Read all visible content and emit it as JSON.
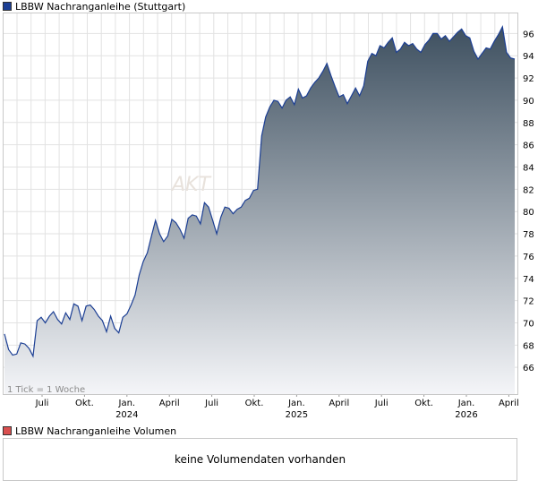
{
  "legend_price": {
    "label": "LBBW Nachranganleihe (Stuttgart)",
    "color": "#1c3f94"
  },
  "legend_volume": {
    "label": "LBBW Nachranganleihe Volumen",
    "color": "#d94f4f"
  },
  "note": "1 Tick = 1 Woche",
  "watermark": "AKT",
  "volume_message": "keine Volumendaten vorhanden",
  "chart_data": {
    "type": "area",
    "series": [
      {
        "values": [
          69.0,
          67.6,
          67.1,
          67.2,
          68.2,
          68.1,
          67.7,
          67.0,
          70.2,
          70.5,
          70.0,
          70.6,
          71.0,
          70.3,
          69.9,
          70.9,
          70.3,
          71.7,
          71.5,
          70.2,
          71.5,
          71.6,
          71.2,
          70.6,
          70.2,
          69.2,
          70.6,
          69.5,
          69.1,
          70.5,
          70.8,
          71.6,
          72.5,
          74.3,
          75.5,
          76.3,
          77.8,
          79.2,
          78.0,
          77.3,
          77.8,
          79.3,
          79.0,
          78.4,
          77.6,
          79.4,
          79.7,
          79.6,
          78.9,
          80.8,
          80.4,
          79.2,
          78.0,
          79.5,
          80.4,
          80.3,
          79.8,
          80.2,
          80.4,
          81.0,
          81.2,
          81.9,
          82.0,
          86.8,
          88.5,
          89.4,
          90.0,
          89.9,
          89.3,
          90.0,
          90.3,
          89.6,
          91.0,
          90.2,
          90.4,
          91.1,
          91.6,
          92.0,
          92.6,
          93.3,
          92.2,
          91.2,
          90.3,
          90.5,
          89.7,
          90.4,
          91.1,
          90.4,
          91.3,
          93.5,
          94.2,
          94.0,
          94.9,
          94.7,
          95.2,
          95.6,
          94.3,
          94.6,
          95.2,
          94.9,
          95.1,
          94.6,
          94.3,
          95.0,
          95.4,
          96.0,
          96.0,
          95.5,
          95.8,
          95.3,
          95.7,
          96.1,
          96.4,
          95.8,
          95.6,
          94.4,
          93.7,
          94.2,
          94.7,
          94.6,
          95.3,
          95.9,
          96.6,
          94.3,
          93.8,
          93.7
        ]
      }
    ],
    "x_ticks": [
      "Juli",
      "Okt.",
      "Jan.",
      "April",
      "Juli",
      "Okt.",
      "Jan.",
      "April",
      "Juli",
      "Okt.",
      "Jan.",
      "April"
    ],
    "x_year_ticks": [
      "2024",
      "2025",
      "2026"
    ],
    "y_ticks": [
      66,
      68,
      70,
      72,
      74,
      76,
      78,
      80,
      82,
      84,
      86,
      88,
      90,
      92,
      94,
      96
    ],
    "ylim": [
      63.6,
      97.8
    ],
    "grid": true,
    "line_color": "#1c3f94",
    "fill_top_color": "#3e5060",
    "fill_bottom_color": "#f4f5f8"
  }
}
